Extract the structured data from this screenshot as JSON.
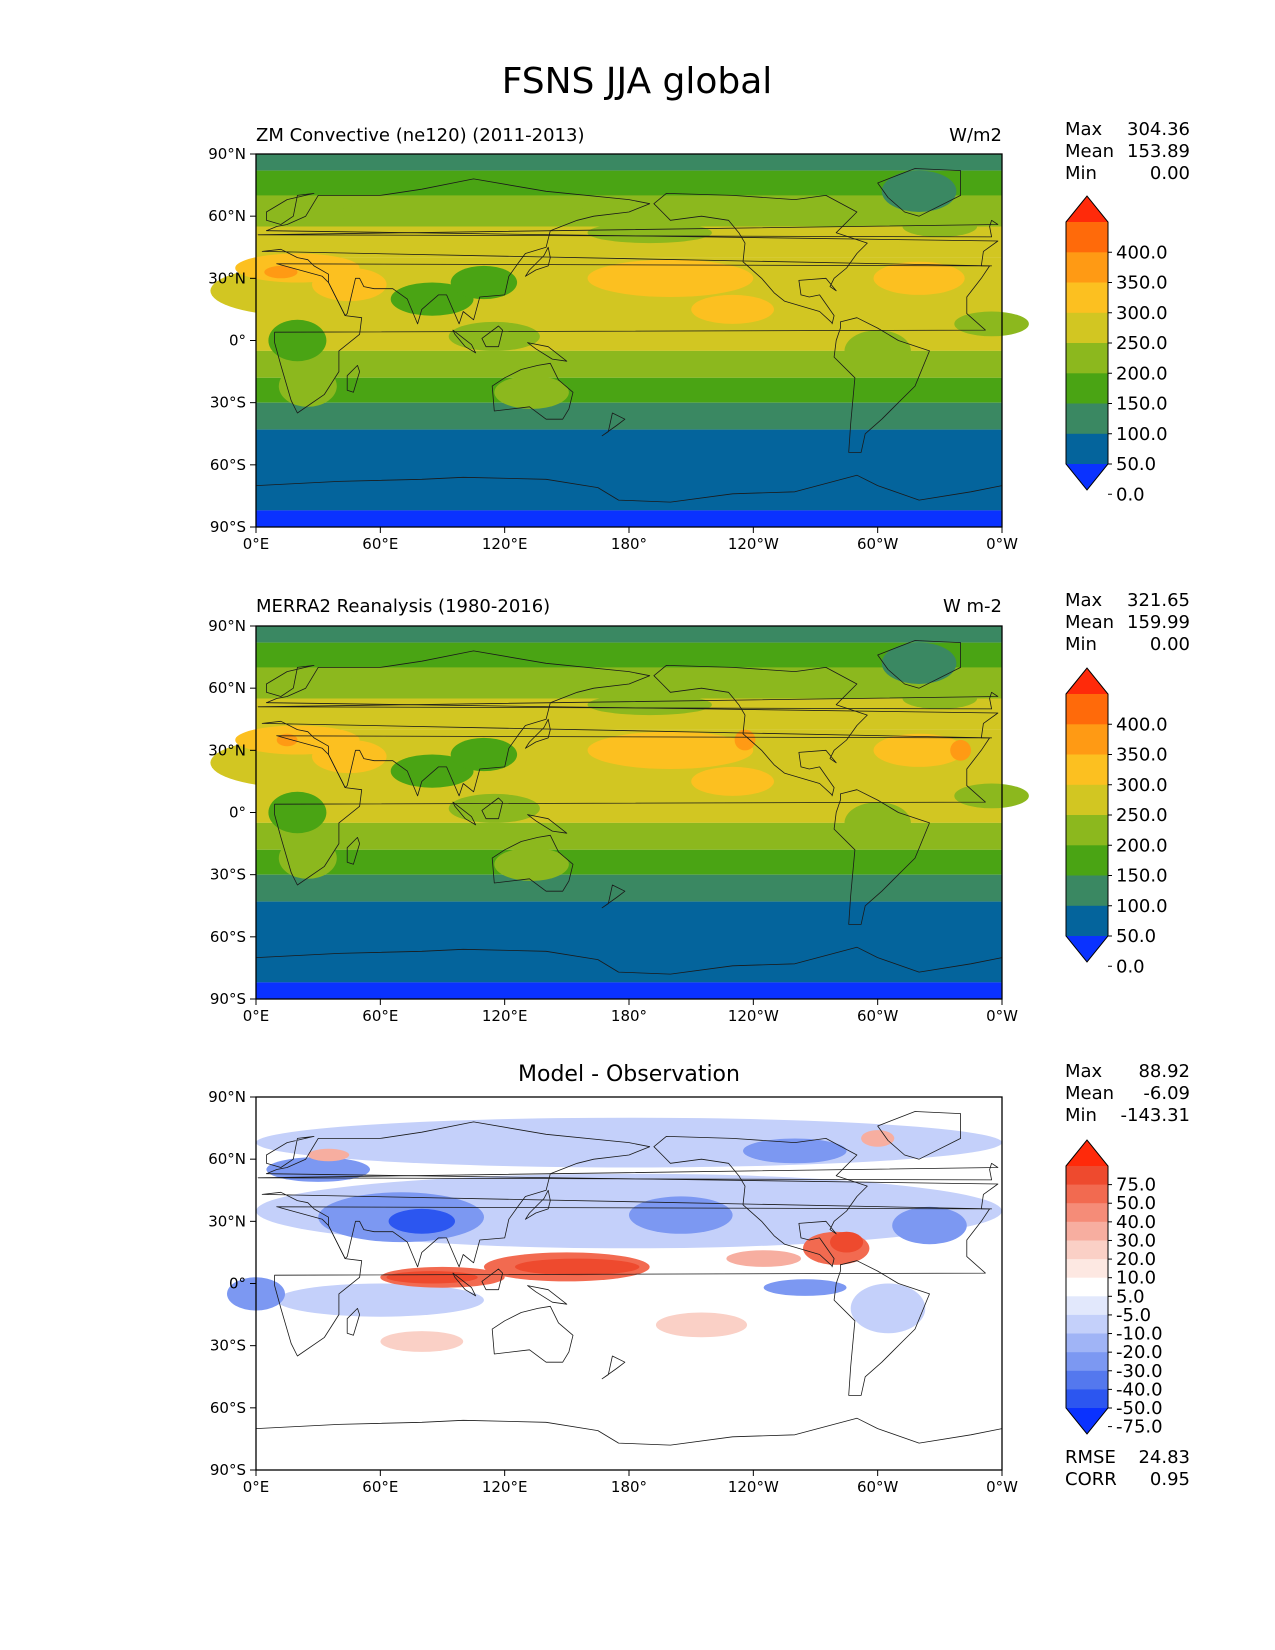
{
  "figure": {
    "title": "FSNS JJA global",
    "colors": {
      "ocean_far_south": "#0a32ff",
      "axis": "#000000",
      "coast": "#1a1a1a"
    }
  },
  "chart_data": [
    {
      "type": "heatmap",
      "title_left": "ZM Convective (ne120) (2011-2013)",
      "title_right": "W/m2",
      "xticks": [
        "0°E",
        "60°E",
        "120°E",
        "180°",
        "120°W",
        "60°W",
        "0°W"
      ],
      "yticks": [
        "90°N",
        "60°N",
        "30°N",
        "0°",
        "30°S",
        "60°S",
        "90°S"
      ],
      "xlim": [
        0,
        360
      ],
      "ylim": [
        -90,
        90
      ],
      "stats": {
        "max_label": "Max",
        "max": "304.36",
        "mean_label": "Mean",
        "mean": "153.89",
        "min_label": "Min",
        "min": "0.00"
      },
      "colorbar": {
        "ticks": [
          "400.0",
          "350.0",
          "300.0",
          "250.0",
          "200.0",
          "150.0",
          "100.0",
          "50.0",
          "0.0"
        ],
        "colors": [
          "#ff2a0a",
          "#ff6a0a",
          "#ff9a14",
          "#fcc020",
          "#d2c622",
          "#8cb81e",
          "#4aa414",
          "#3a8862",
          "#04649c",
          "#0a32ff"
        ]
      },
      "zonal_bands": [
        {
          "lat_from": 90,
          "lat_to": 82,
          "value_color": "#3a8862"
        },
        {
          "lat_from": 82,
          "lat_to": 70,
          "value_color": "#4aa414"
        },
        {
          "lat_from": 70,
          "lat_to": 55,
          "value_color": "#8cb81e"
        },
        {
          "lat_from": 55,
          "lat_to": 40,
          "value_color": "#d2c622"
        },
        {
          "lat_from": 40,
          "lat_to": -5,
          "value_color": "#d2c622"
        },
        {
          "lat_from": -5,
          "lat_to": -18,
          "value_color": "#8cb81e"
        },
        {
          "lat_from": -18,
          "lat_to": -30,
          "value_color": "#4aa414"
        },
        {
          "lat_from": -30,
          "lat_to": -43,
          "value_color": "#3a8862"
        },
        {
          "lat_from": -43,
          "lat_to": -82,
          "value_color": "#04649c"
        },
        {
          "lat_from": -82,
          "lat_to": -90,
          "value_color": "#0a32ff"
        }
      ]
    },
    {
      "type": "heatmap",
      "title_left": "MERRA2 Reanalysis (1980-2016)",
      "title_right": "W m-2",
      "xticks": [
        "0°E",
        "60°E",
        "120°E",
        "180°",
        "120°W",
        "60°W",
        "0°W"
      ],
      "yticks": [
        "90°N",
        "60°N",
        "30°N",
        "0°",
        "30°S",
        "60°S",
        "90°S"
      ],
      "xlim": [
        0,
        360
      ],
      "ylim": [
        -90,
        90
      ],
      "stats": {
        "max_label": "Max",
        "max": "321.65",
        "mean_label": "Mean",
        "mean": "159.99",
        "min_label": "Min",
        "min": "0.00"
      },
      "colorbar": {
        "ticks": [
          "400.0",
          "350.0",
          "300.0",
          "250.0",
          "200.0",
          "150.0",
          "100.0",
          "50.0",
          "0.0"
        ],
        "colors": [
          "#ff2a0a",
          "#ff6a0a",
          "#ff9a14",
          "#fcc020",
          "#d2c622",
          "#8cb81e",
          "#4aa414",
          "#3a8862",
          "#04649c",
          "#0a32ff"
        ]
      },
      "zonal_bands": [
        {
          "lat_from": 90,
          "lat_to": 82,
          "value_color": "#3a8862"
        },
        {
          "lat_from": 82,
          "lat_to": 70,
          "value_color": "#4aa414"
        },
        {
          "lat_from": 70,
          "lat_to": 55,
          "value_color": "#8cb81e"
        },
        {
          "lat_from": 55,
          "lat_to": 40,
          "value_color": "#d2c622"
        },
        {
          "lat_from": 40,
          "lat_to": -5,
          "value_color": "#d2c622"
        },
        {
          "lat_from": -5,
          "lat_to": -18,
          "value_color": "#8cb81e"
        },
        {
          "lat_from": -18,
          "lat_to": -30,
          "value_color": "#4aa414"
        },
        {
          "lat_from": -30,
          "lat_to": -43,
          "value_color": "#3a8862"
        },
        {
          "lat_from": -43,
          "lat_to": -82,
          "value_color": "#04649c"
        },
        {
          "lat_from": -82,
          "lat_to": -90,
          "value_color": "#0a32ff"
        }
      ]
    },
    {
      "type": "heatmap",
      "title_center": "Model - Observation",
      "xticks": [
        "0°E",
        "60°E",
        "120°E",
        "180°",
        "120°W",
        "60°W",
        "0°W"
      ],
      "yticks": [
        "90°N",
        "60°N",
        "30°N",
        "0°",
        "30°S",
        "60°S",
        "90°S"
      ],
      "xlim": [
        0,
        360
      ],
      "ylim": [
        -90,
        90
      ],
      "stats": {
        "max_label": "Max",
        "max": "88.92",
        "mean_label": "Mean",
        "mean": "-6.09",
        "min_label": "Min",
        "min": "-143.31"
      },
      "metrics": {
        "rmse_label": "RMSE",
        "rmse": "24.83",
        "corr_label": "CORR",
        "corr": "0.95"
      },
      "colorbar": {
        "ticks": [
          "75.0",
          "50.0",
          "40.0",
          "30.0",
          "20.0",
          "10.0",
          "5.0",
          "-5.0",
          "-10.0",
          "-20.0",
          "-30.0",
          "-40.0",
          "-50.0",
          "-75.0"
        ],
        "colors": [
          "#ff2a0a",
          "#ee4a2e",
          "#f26a50",
          "#f58c78",
          "#f7aea0",
          "#fad0c6",
          "#fde8e2",
          "#ffffff",
          "#e2e8fc",
          "#c4d0fa",
          "#a0b4f6",
          "#7c98f2",
          "#5478ee",
          "#2c56f0",
          "#0a32ff"
        ]
      }
    }
  ]
}
